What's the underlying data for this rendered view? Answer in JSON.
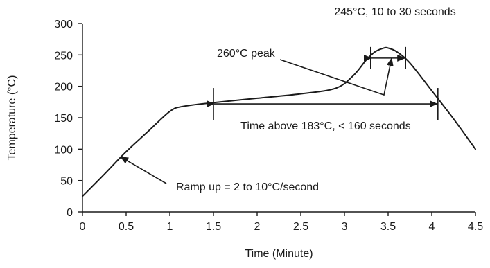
{
  "chart_data": {
    "type": "line",
    "xlabel": "Time (Minute)",
    "ylabel": "Temperature (°C)",
    "xlim": [
      0,
      4.5
    ],
    "ylim": [
      0,
      300
    ],
    "x_ticks": [
      "0",
      "0.5",
      "1",
      "1.5",
      "2",
      "2.5",
      "3",
      "3.5",
      "4",
      "4.5"
    ],
    "y_ticks": [
      "0",
      "50",
      "100",
      "150",
      "200",
      "250",
      "300"
    ],
    "grid": false,
    "series": [
      {
        "x": [
          0,
          0.25,
          0.5,
          0.75,
          1.0,
          1.15,
          1.5,
          2.0,
          2.5,
          2.9,
          3.1,
          3.25,
          3.35,
          3.45,
          3.5,
          3.6,
          3.75,
          4.0,
          4.25,
          4.5
        ],
        "y": [
          25,
          60,
          96,
          128,
          160,
          168,
          174,
          181,
          188,
          197,
          217,
          242,
          255,
          261,
          261,
          255,
          237,
          193,
          148,
          100
        ]
      }
    ],
    "annotations": {
      "peak": {
        "text": "260°C peak",
        "target": [
          3.5,
          258
        ]
      },
      "window": {
        "text": "245°C, 10 to 30 seconds",
        "x_from": 3.3,
        "x_to": 3.7,
        "y": 245
      },
      "time_above": {
        "text": "Time above 183°C, < 160 seconds",
        "x_from": 1.5,
        "x_to": 4.07,
        "y": 172
      },
      "ramp": {
        "text": "Ramp up = 2 to 10°C/second",
        "target": [
          0.42,
          90
        ]
      }
    }
  }
}
